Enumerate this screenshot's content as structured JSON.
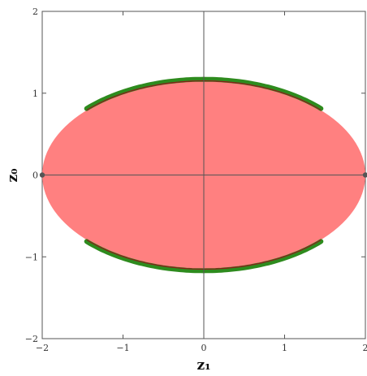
{
  "chart_data": {
    "type": "scatter",
    "title": "",
    "xlabel": "z₁",
    "ylabel": "z₀",
    "xlim": [
      -2,
      2
    ],
    "ylim": [
      -2,
      2
    ],
    "x_ticks": [
      -2,
      -1,
      0,
      1,
      2
    ],
    "y_ticks": [
      -2,
      -1,
      0,
      1,
      2
    ],
    "x_tick_labels": [
      "−2",
      "−1",
      "0",
      "1",
      "2"
    ],
    "y_tick_labels": [
      "−2",
      "−1",
      "0",
      "1",
      "2"
    ],
    "grid": false,
    "axes_through_origin": true,
    "region": {
      "shape": "ellipse",
      "center": [
        0,
        0
      ],
      "semi_axis_x": 2.0,
      "semi_axis_y": 1.15,
      "color": "#ff8080"
    },
    "boundary_arcs": {
      "color": "#2e8b1e",
      "edge_color": "#8b1a1a",
      "x_range": [
        -1.45,
        1.45
      ]
    },
    "end_points": {
      "color": "#555555",
      "points": [
        [
          -2,
          0
        ],
        [
          2,
          0
        ]
      ]
    }
  }
}
